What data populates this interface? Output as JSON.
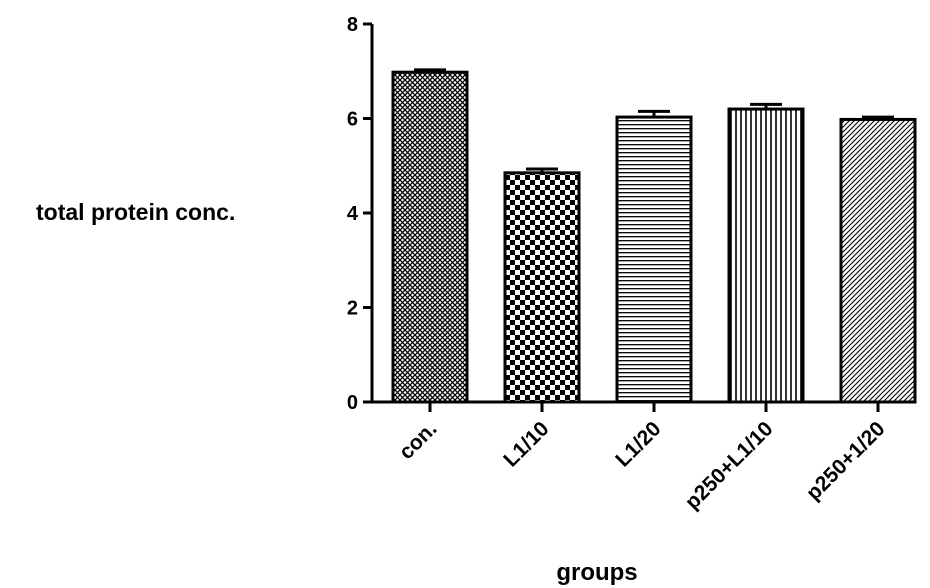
{
  "chart_data": {
    "type": "bar",
    "title": "",
    "xlabel": "groups",
    "ylabel": "total protein conc.",
    "ylim": [
      0,
      8
    ],
    "yticks": [
      0,
      2,
      4,
      6,
      8
    ],
    "grid": false,
    "categories": [
      "con.",
      "L1/10",
      "L1/20",
      "p250+L1/10",
      "p250+1/20"
    ],
    "values": [
      6.98,
      4.85,
      6.03,
      6.2,
      5.98
    ],
    "errors": [
      0.05,
      0.08,
      0.12,
      0.1,
      0.05
    ],
    "patterns": [
      "crosshatch",
      "checkerboard",
      "horizontal-lines",
      "vertical-lines",
      "diagonal-lines"
    ]
  }
}
